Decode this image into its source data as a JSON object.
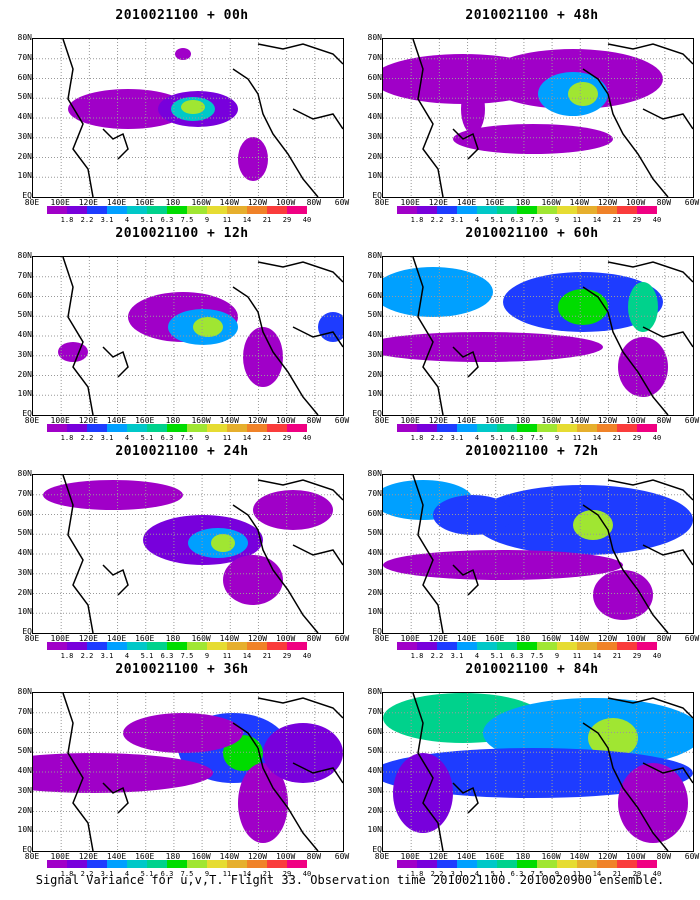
{
  "panels": [
    {
      "title": "2010021100 + 00h",
      "lead": "00h"
    },
    {
      "title": "2010021100 + 48h",
      "lead": "48h"
    },
    {
      "title": "2010021100 + 12h",
      "lead": "12h"
    },
    {
      "title": "2010021100 + 60h",
      "lead": "60h"
    },
    {
      "title": "2010021100 + 24h",
      "lead": "24h"
    },
    {
      "title": "2010021100 + 72h",
      "lead": "72h"
    },
    {
      "title": "2010021100 + 36h",
      "lead": "36h"
    },
    {
      "title": "2010021100 + 84h",
      "lead": "84h"
    }
  ],
  "lat_labels": [
    "80N",
    "70N",
    "60N",
    "50N",
    "40N",
    "30N",
    "20N",
    "10N",
    "EQ"
  ],
  "lon_labels": [
    "80E",
    "100E",
    "120E",
    "140E",
    "160E",
    "180",
    "160W",
    "140W",
    "120W",
    "100W",
    "80W",
    "60W"
  ],
  "colorbar": {
    "labels": [
      "1.8",
      "2.2",
      "3.1",
      "4",
      "5.1",
      "6.3",
      "7.5",
      "9",
      "11",
      "14",
      "21",
      "29",
      "40"
    ],
    "colors": [
      "#a000c8",
      "#7800dc",
      "#1e3cff",
      "#00a0ff",
      "#00c8c8",
      "#00d28c",
      "#00dc00",
      "#a0e632",
      "#e6dc32",
      "#e6af2d",
      "#f08228",
      "#fa3c3c",
      "#f00082"
    ]
  },
  "footer": "Signal Variance for u,v,T. Flight 33. Observation time 2010021100. 2010020900 ensemble."
}
